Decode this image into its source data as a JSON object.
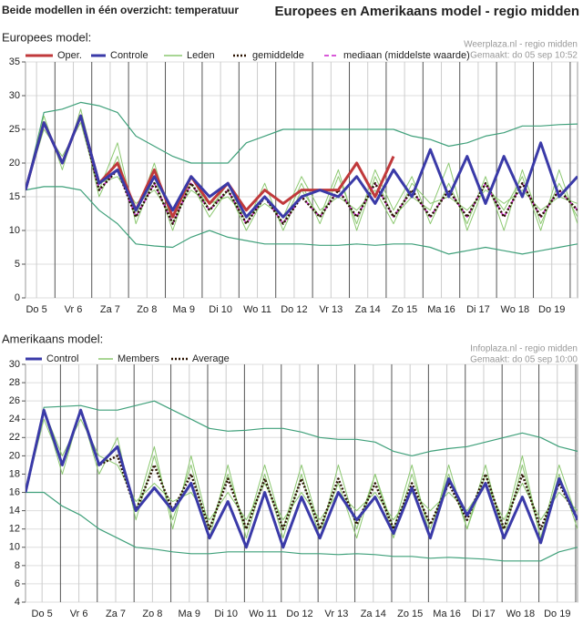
{
  "header": {
    "left": "Beide modellen in één overzicht: temperatuur",
    "right": "Europees en Amerikaans model - regio midden"
  },
  "chart_data": [
    {
      "type": "line",
      "title": "Europees model:",
      "source": "Weerplaza.nl - regio midden",
      "made": "Gemaakt: do 05 sep 10:52",
      "x": [
        0.2,
        0.7,
        1.2,
        1.7,
        2.2,
        2.7,
        3.2,
        3.7,
        4.2,
        4.7,
        5.2,
        5.7,
        6.2,
        6.7,
        7.2,
        7.7,
        8.2,
        8.7,
        9.2,
        9.7,
        10.2,
        10.7,
        11.2,
        11.7,
        12.2,
        12.7,
        13.2,
        13.7,
        14.2,
        14.7,
        15.2
      ],
      "xlim": [
        0.2,
        15.2
      ],
      "xticks": [
        {
          "value": 0.5,
          "label": "Do 5"
        },
        {
          "value": 1.5,
          "label": "Vr 6"
        },
        {
          "value": 2.5,
          "label": "Za 7"
        },
        {
          "value": 3.5,
          "label": "Zo 8"
        },
        {
          "value": 4.5,
          "label": "Ma 9"
        },
        {
          "value": 5.5,
          "label": "Di 10"
        },
        {
          "value": 6.5,
          "label": "Wo 11"
        },
        {
          "value": 7.5,
          "label": "Do 12"
        },
        {
          "value": 8.5,
          "label": "Vr 13"
        },
        {
          "value": 9.5,
          "label": "Za 14"
        },
        {
          "value": 10.5,
          "label": "Zo 15"
        },
        {
          "value": 11.5,
          "label": "Ma 16"
        },
        {
          "value": 12.5,
          "label": "Di 17"
        },
        {
          "value": 13.5,
          "label": "Wo 18"
        },
        {
          "value": 14.5,
          "label": "Do 19"
        }
      ],
      "ylim": [
        0,
        35
      ],
      "yticks": [
        0,
        5,
        10,
        15,
        20,
        25,
        30,
        35
      ],
      "grid": true,
      "envelope": {
        "color": "#3fa07a",
        "min": [
          16,
          16.5,
          16.5,
          16,
          13,
          11,
          8,
          7.7,
          7.5,
          9,
          10,
          9,
          8.5,
          8,
          8,
          8,
          7.8,
          7.8,
          8,
          7.8,
          8,
          8,
          7.5,
          6.5,
          7,
          7.5,
          7,
          6.5,
          7,
          7.5,
          8
        ],
        "max": [
          16,
          27.5,
          28,
          29,
          28.5,
          27.5,
          24,
          22.5,
          21,
          20,
          20,
          20,
          23,
          24,
          25,
          25,
          25,
          25,
          25,
          25,
          25,
          24,
          23.5,
          22.5,
          23,
          24,
          24.5,
          25.5,
          25.5,
          25.7,
          25.8
        ]
      },
      "series": [
        {
          "name": "Oper.",
          "color": "#c0393b",
          "style": "thick",
          "values": [
            16,
            26,
            20,
            27,
            17,
            20,
            13,
            19,
            12,
            18,
            14,
            17,
            13,
            16,
            14,
            16,
            16,
            16,
            20,
            15,
            21,
            null,
            null,
            null,
            null,
            null,
            null,
            null,
            null,
            null,
            null
          ]
        },
        {
          "name": "Controle",
          "color": "#3a3aa8",
          "style": "thick",
          "values": [
            16,
            26,
            20,
            27,
            17,
            19,
            13,
            18,
            13,
            18,
            15,
            17,
            12,
            15,
            12,
            15,
            16,
            15,
            18,
            14,
            19,
            15,
            22,
            15,
            21,
            14,
            21,
            15,
            23,
            15,
            18
          ]
        },
        {
          "name": "Leden",
          "color": "#8cc870",
          "style": "thin",
          "values": [
            [
              16,
              26,
              20,
              27,
              15,
              21,
              12,
              20,
              11,
              17,
              12,
              16,
              10,
              15,
              11,
              17,
              11,
              18,
              11,
              19,
              13,
              18,
              11,
              17,
              11,
              18,
              10,
              19,
              11,
              17,
              12
            ],
            [
              16,
              27,
              19,
              28,
              17,
              18,
              14,
              16,
              12,
              16,
              14,
              15,
              12,
              14,
              12,
              18,
              13,
              15,
              13,
              16,
              11,
              17,
              14,
              15,
              13,
              16,
              14,
              16,
              13,
              15,
              14
            ],
            [
              16,
              25,
              21,
              26,
              16,
              23,
              11,
              18,
              10,
              18,
              13,
              17,
              11,
              17,
              10,
              16,
              12,
              19,
              10,
              18,
              12,
              15,
              13,
              20,
              10,
              17,
              13,
              18,
              10,
              19,
              11
            ]
          ]
        },
        {
          "name": "gemiddelde",
          "color": "#2a1200",
          "style": "dotted",
          "values": [
            16,
            26,
            20,
            27,
            16,
            19,
            12,
            17,
            11,
            17,
            13,
            16,
            11,
            15,
            11,
            15,
            12,
            16,
            12,
            17,
            12,
            16,
            12,
            16,
            12,
            17,
            12,
            17,
            12,
            16,
            13
          ]
        },
        {
          "name": "mediaan (middelste waarde)",
          "color": "#cc22cc",
          "style": "dashed",
          "values": [
            16,
            26,
            20,
            27,
            16,
            19,
            12,
            17,
            11,
            17,
            13,
            16,
            11,
            15,
            11,
            15,
            12,
            16,
            12,
            17,
            12,
            16,
            12,
            16,
            12,
            17,
            12,
            17,
            12,
            16,
            13
          ]
        }
      ]
    },
    {
      "type": "line",
      "title": "Amerikaans model:",
      "source": "Infoplaza.nl - regio midden",
      "made": "Gemaakt: do 05 sep 10:00",
      "x": [
        0.05,
        0.55,
        1.05,
        1.55,
        2.05,
        2.55,
        3.05,
        3.55,
        4.05,
        4.55,
        5.05,
        5.55,
        6.05,
        6.55,
        7.05,
        7.55,
        8.05,
        8.55,
        9.05,
        9.55,
        10.05,
        10.55,
        11.05,
        11.55,
        12.05,
        12.55,
        13.05,
        13.55,
        14.05,
        14.55,
        15.05
      ],
      "xlim": [
        0.05,
        15.05
      ],
      "xticks": [
        {
          "value": 0.5,
          "label": "Do 5"
        },
        {
          "value": 1.5,
          "label": "Vr 6"
        },
        {
          "value": 2.5,
          "label": "Za 7"
        },
        {
          "value": 3.5,
          "label": "Zo 8"
        },
        {
          "value": 4.5,
          "label": "Ma 9"
        },
        {
          "value": 5.5,
          "label": "Di 10"
        },
        {
          "value": 6.5,
          "label": "Wo 11"
        },
        {
          "value": 7.5,
          "label": "Do 12"
        },
        {
          "value": 8.5,
          "label": "Vr 13"
        },
        {
          "value": 9.5,
          "label": "Za 14"
        },
        {
          "value": 10.5,
          "label": "Zo 15"
        },
        {
          "value": 11.5,
          "label": "Ma 16"
        },
        {
          "value": 12.5,
          "label": "Di 17"
        },
        {
          "value": 13.5,
          "label": "Wo 18"
        },
        {
          "value": 14.5,
          "label": "Do 19"
        }
      ],
      "ylim": [
        4,
        30
      ],
      "yticks": [
        4,
        6,
        8,
        10,
        12,
        14,
        16,
        18,
        20,
        22,
        24,
        26,
        28,
        30
      ],
      "grid": true,
      "envelope": {
        "color": "#3fa07a",
        "min": [
          16,
          16,
          14.5,
          13.5,
          12,
          11,
          10,
          9.8,
          9.5,
          9.3,
          9.3,
          9.5,
          9.5,
          9.5,
          9.5,
          9.3,
          9.3,
          9.2,
          9.3,
          9.2,
          9,
          9,
          8.8,
          8.9,
          8.8,
          8.7,
          8.5,
          8.5,
          8.5,
          9.5,
          10
        ],
        "max": [
          16,
          25.3,
          25.4,
          25.5,
          25,
          25,
          25.5,
          26,
          25,
          24,
          23,
          22.7,
          22.8,
          23,
          23,
          22.6,
          22,
          21.8,
          21.8,
          21.5,
          20.5,
          20,
          20.5,
          20.8,
          21,
          21.5,
          22,
          22.5,
          22,
          21,
          20.5
        ]
      },
      "series": [
        {
          "name": "Control",
          "color": "#3a3aa8",
          "style": "thick",
          "values": [
            16,
            25,
            19,
            25,
            19,
            21,
            14,
            16.5,
            14,
            17,
            11,
            15,
            10,
            16,
            10,
            15.5,
            11,
            16,
            13,
            15.5,
            11.5,
            16.5,
            11,
            17.5,
            13.5,
            17,
            11,
            15.5,
            10.5,
            17.5,
            13
          ]
        },
        {
          "name": "Members",
          "color": "#8cc870",
          "style": "thin",
          "values": [
            [
              16,
              25,
              18,
              25,
              18,
              22,
              13,
              20,
              13,
              19,
              11,
              19,
              11,
              18,
              11,
              18,
              11,
              19,
              12,
              18,
              11,
              18,
              12,
              18,
              12,
              19,
              11,
              19,
              11,
              18,
              12
            ],
            [
              16,
              25,
              20,
              24,
              20,
              19,
              15,
              17,
              15,
              16,
              13,
              16,
              13,
              17,
              13,
              16,
              13,
              16,
              14,
              16,
              13,
              16,
              14,
              16,
              14,
              17,
              13,
              17,
              13,
              16,
              14
            ],
            [
              16,
              24,
              19,
              25,
              19,
              21,
              14,
              21,
              12,
              20,
              12,
              18,
              12,
              19,
              12,
              19,
              12,
              17,
              11,
              18,
              12,
              19,
              11,
              19,
              12,
              18,
              12,
              20,
              11,
              19,
              13
            ]
          ]
        },
        {
          "name": "Average",
          "color": "#2a1200",
          "style": "dotted",
          "values": [
            16,
            25,
            19,
            25,
            19,
            20,
            14,
            19,
            14,
            18,
            12,
            17.5,
            12,
            17.5,
            12,
            17.5,
            12,
            17.5,
            12.5,
            17,
            12,
            17,
            12.5,
            17,
            13,
            18,
            12,
            18,
            12,
            17,
            13
          ]
        }
      ]
    }
  ]
}
